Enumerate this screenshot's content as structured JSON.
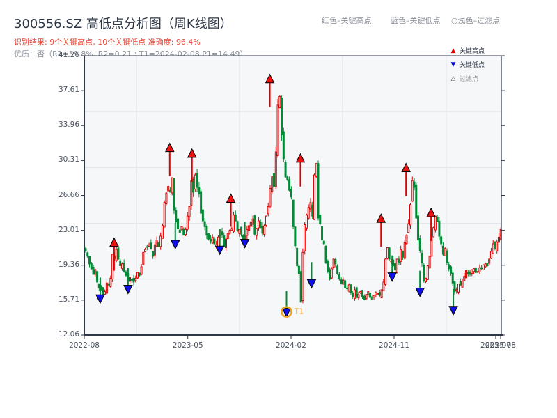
{
  "header": {
    "title": "300556.SZ 高低点分析图（周K线图）",
    "result_line": "识别结果: 9个关键高点, 10个关键低点  准确度: 96.4%",
    "quality_line": "优质：否（R1=59.8%, R2=0.21 ; T1=2024-02-08 P1=14.49）"
  },
  "top_legend": {
    "red": "红色–关键高点",
    "blue": "蓝色–关键低点",
    "light": "○浅色–过滤点"
  },
  "legend": [
    {
      "label": "关键高点",
      "symbol": "▲",
      "color": "#e00000"
    },
    {
      "label": "关键低点",
      "symbol": "▼",
      "color": "#0000e0"
    },
    {
      "label": "过滤点",
      "symbol": "△",
      "color": "#999999"
    }
  ],
  "colors": {
    "up": "#e00000",
    "down": "#008a35",
    "high_marker": "#ee1111",
    "low_marker": "#1010ee",
    "t1_ring": "#f0a020",
    "grid": "#e3e6ea",
    "plot_bg": "#f6f7f9",
    "axis": "#2c3645"
  },
  "chart_data": {
    "type": "candlestick",
    "title": "300556.SZ 高低点分析图（周K线图）",
    "xlabel": "",
    "ylabel": "",
    "ylim": [
      12.06,
      41.26
    ],
    "yticks": [
      "12.06",
      "15.71",
      "19.36",
      "23.01",
      "26.66",
      "30.31",
      "33.96",
      "37.61",
      "41.26"
    ],
    "xticks": [
      {
        "label": "2022-08",
        "pos": 0.0
      },
      {
        "label": "2023-05",
        "pos": 0.2483
      },
      {
        "label": "2024-02",
        "pos": 0.4958
      },
      {
        "label": "2024-11",
        "pos": 0.7429
      },
      {
        "label": "2025-07",
        "pos": 0.9866
      },
      {
        "label": "2025-08",
        "pos": 0.9983
      }
    ],
    "grid": true,
    "legend_position": "upper right",
    "closes": [
      20.9,
      20.3,
      19.5,
      19.0,
      18.4,
      18.9,
      17.6,
      17.0,
      16.8,
      16.3,
      16.6,
      17.5,
      17.3,
      18.0,
      20.5,
      20.0,
      21.0,
      20.0,
      19.3,
      19.5,
      18.7,
      18.3,
      17.8,
      18.1,
      17.8,
      17.6,
      18.0,
      18.6,
      18.3,
      19.2,
      20.7,
      21.0,
      21.3,
      21.5,
      21.1,
      20.3,
      21.5,
      22.0,
      21.3,
      22.4,
      23.5,
      25.9,
      26.9,
      27.6,
      27.0,
      28.5,
      25.1,
      23.9,
      23.2,
      22.8,
      23.4,
      22.5,
      23.1,
      24.5,
      25.5,
      28.2,
      27.0,
      28.8,
      27.5,
      26.8,
      24.8,
      24.0,
      23.4,
      22.5,
      22.1,
      21.9,
      22.3,
      21.6,
      21.5,
      22.3,
      23.0,
      22.5,
      21.3,
      22.1,
      22.7,
      23.0,
      23.2,
      24.6,
      24.0,
      23.0,
      23.1,
      22.6,
      22.0,
      22.4,
      23.1,
      23.5,
      23.9,
      24.2,
      22.6,
      23.2,
      24.0,
      23.3,
      22.7,
      23.5,
      24.5,
      25.5,
      27.4,
      28.6,
      27.6,
      31.2,
      36.1,
      37.0,
      33.0,
      30.5,
      28.6,
      28.3,
      27.2,
      26.5,
      23.4,
      21.4,
      19.3,
      18.5,
      15.5,
      20.7,
      23.6,
      24.6,
      25.4,
      25.9,
      24.5,
      28.8,
      30.0,
      24.3,
      23.7,
      22.0,
      21.6,
      19.6,
      18.7,
      17.9,
      19.0,
      20.0,
      19.5,
      18.5,
      18.0,
      17.4,
      17.8,
      17.0,
      16.9,
      17.3,
      16.5,
      16.1,
      16.8,
      16.0,
      16.3,
      16.6,
      16.1,
      15.8,
      16.3,
      16.6,
      16.0,
      15.8,
      16.2,
      16.5,
      16.4,
      16.2,
      16.8,
      17.6,
      20.0,
      21.2,
      20.0,
      19.8,
      19.3,
      18.9,
      20.0,
      19.6,
      21.0,
      20.2,
      21.7,
      22.5,
      23.7,
      25.7,
      28.2,
      27.5,
      24.3,
      22.0,
      20.9,
      19.6,
      17.7,
      18.0,
      19.3,
      20.3,
      22.2,
      23.3,
      24.5,
      23.9,
      22.4,
      21.6,
      20.5,
      21.1,
      19.6,
      19.0,
      18.5,
      17.5,
      16.6,
      16.8,
      17.4,
      17.3,
      17.7,
      18.2,
      18.8,
      18.5,
      18.4,
      18.9,
      19.0,
      18.6,
      18.7,
      19.1,
      19.0,
      19.4,
      19.5,
      19.3,
      20.0,
      20.8,
      21.6,
      21.1,
      21.8,
      22.3,
      23.1
    ],
    "key_highs": [
      {
        "x": 0.0716,
        "price": 21.7
      },
      {
        "x": 0.205,
        "price": 31.6
      },
      {
        "x": 0.2583,
        "price": 31.0
      },
      {
        "x": 0.3516,
        "price": 26.3
      },
      {
        "x": 0.445,
        "price": 38.8
      },
      {
        "x": 0.5183,
        "price": 30.5
      },
      {
        "x": 0.7116,
        "price": 24.2
      },
      {
        "x": 0.7716,
        "price": 29.5
      },
      {
        "x": 0.8316,
        "price": 24.8
      }
    ],
    "key_lows": [
      {
        "x": 0.0383,
        "price": 15.9
      },
      {
        "x": 0.105,
        "price": 16.9
      },
      {
        "x": 0.2183,
        "price": 21.6
      },
      {
        "x": 0.325,
        "price": 21.0
      },
      {
        "x": 0.385,
        "price": 21.7
      },
      {
        "x": 0.485,
        "price": 14.49,
        "label": "T1"
      },
      {
        "x": 0.545,
        "price": 17.5
      },
      {
        "x": 0.7383,
        "price": 18.2
      },
      {
        "x": 0.805,
        "price": 16.6
      },
      {
        "x": 0.885,
        "price": 14.7
      }
    ]
  }
}
